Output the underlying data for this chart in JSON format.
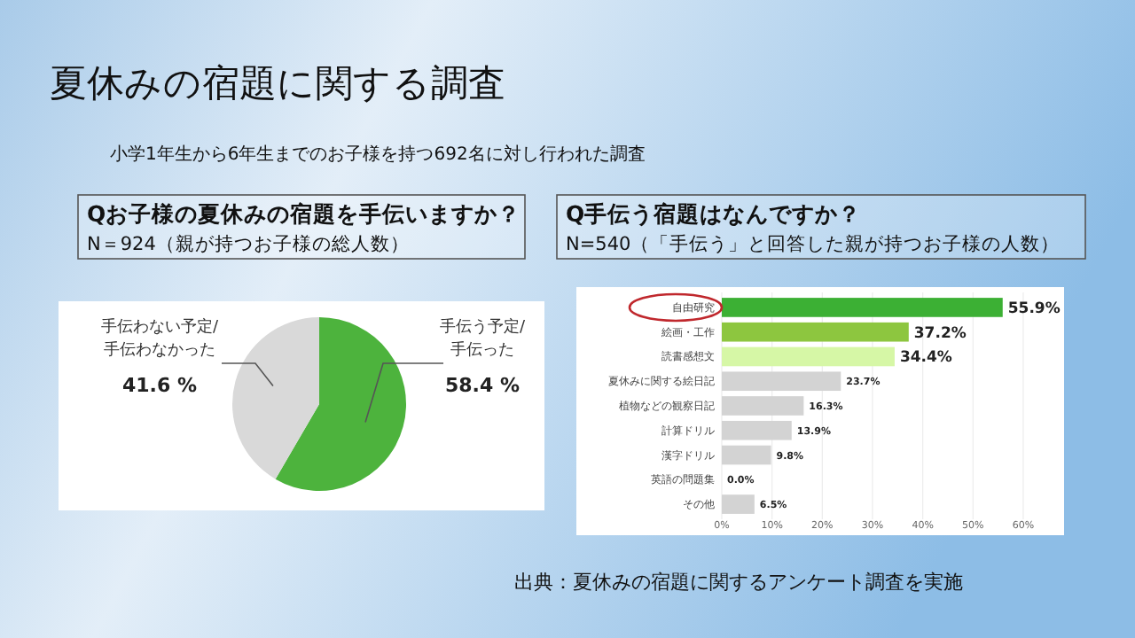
{
  "chart_data": [
    {
      "type": "pie",
      "title": "Qお子様の夏休みの宿題を手伝いますか？",
      "subtitle": "N＝924（親が持つお子様の総人数）",
      "annotations": [
        "夏休みの宿題に関する調査",
        "小学1年生から6年生までのお子様を持つ692名に対し行われた調査"
      ],
      "categories": [
        "手伝う予定/\n手伝った",
        "手伝わない予定/\n手伝わなかった"
      ],
      "values": [
        58.4,
        41.6
      ],
      "colors": [
        "#4db33d",
        "#d9d9d9"
      ],
      "value_labels": [
        "58.4 %",
        "41.6 %"
      ]
    },
    {
      "type": "bar",
      "orientation": "horizontal",
      "title": "Q手伝う宿題はなんですか？",
      "subtitle": "N=540（「手伝う」と回答した親が持つお子様の人数）",
      "annotations": [
        "出典：夏休みの宿題に関するアンケート調査を実施"
      ],
      "categories": [
        "自由研究",
        "絵画・工作",
        "読書感想文",
        "夏休みに関する絵日記",
        "植物などの観察日記",
        "計算ドリル",
        "漢字ドリル",
        "英語の問題集",
        "その他"
      ],
      "values": [
        55.9,
        37.2,
        34.4,
        23.7,
        16.3,
        13.9,
        9.8,
        0.0,
        6.5
      ],
      "colors": [
        "#3cb034",
        "#8dc63f",
        "#d6f7a6",
        "#d3d3d3",
        "#d3d3d3",
        "#d3d3d3",
        "#d3d3d3",
        "#d3d3d3",
        "#d3d3d3"
      ],
      "value_labels": [
        "55.9%",
        "37.2%",
        "34.4%",
        "23.7%",
        "16.3%",
        "13.9%",
        "9.8%",
        "0.0%",
        "6.5%"
      ],
      "xlim": [
        0,
        60
      ],
      "xticks": [
        {
          "value": 0,
          "label": "0%"
        },
        {
          "value": 10,
          "label": "10%"
        },
        {
          "value": 20,
          "label": "20%"
        },
        {
          "value": 30,
          "label": "30%"
        },
        {
          "value": 40,
          "label": "40%"
        },
        {
          "value": 50,
          "label": "50%"
        },
        {
          "value": 60,
          "label": "60%"
        }
      ],
      "grid": "x"
    }
  ]
}
